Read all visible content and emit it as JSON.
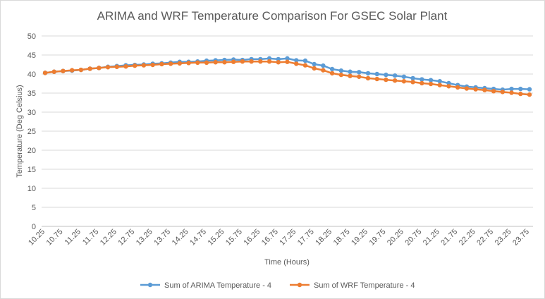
{
  "chart_data": {
    "type": "line",
    "title": "ARIMA and WRF Temperature Comparison For GSEC Solar Plant",
    "xlabel": "Time (Hours)",
    "ylabel": "Temperature  (Deg Celsius)",
    "ylim": [
      0,
      50
    ],
    "yticks": [
      0,
      5,
      10,
      15,
      20,
      25,
      30,
      35,
      40,
      45,
      50
    ],
    "grid": true,
    "legend_position": "bottom",
    "x": [
      10.25,
      10.5,
      10.75,
      11,
      11.25,
      11.5,
      11.75,
      12,
      12.25,
      12.5,
      12.75,
      13,
      13.25,
      13.5,
      13.75,
      14,
      14.25,
      14.5,
      14.75,
      15,
      15.25,
      15.5,
      15.75,
      16,
      16.25,
      16.5,
      16.75,
      17,
      17.25,
      17.5,
      17.75,
      18,
      18.25,
      18.5,
      18.75,
      19,
      19.25,
      19.5,
      19.75,
      20,
      20.25,
      20.5,
      20.75,
      21,
      21.25,
      21.5,
      21.75,
      22,
      22.25,
      22.5,
      22.75,
      23,
      23.25,
      23.5,
      23.75
    ],
    "xtick_labels": [
      "10.25",
      "10.75",
      "11.25",
      "11.75",
      "12.25",
      "12.75",
      "13.25",
      "13.75",
      "14.25",
      "14.75",
      "15.25",
      "15.75",
      "16.25",
      "16.75",
      "17.25",
      "17.75",
      "18.25",
      "18.75",
      "19.25",
      "19.75",
      "20.25",
      "20.75",
      "21.25",
      "21.75",
      "22.25",
      "22.75",
      "23.25",
      "23.75"
    ],
    "series": [
      {
        "name": "Sum of ARIMA Temperature - 4",
        "color": "#5b9bd5",
        "values": [
          40.3,
          40.6,
          40.8,
          40.9,
          41.1,
          41.4,
          41.6,
          41.9,
          42.1,
          42.3,
          42.4,
          42.5,
          42.7,
          42.8,
          43.0,
          43.2,
          43.2,
          43.3,
          43.5,
          43.6,
          43.7,
          43.8,
          43.7,
          43.9,
          43.9,
          44.1,
          43.9,
          44.1,
          43.6,
          43.5,
          42.6,
          42.2,
          41.3,
          40.9,
          40.6,
          40.5,
          40.2,
          40.0,
          39.8,
          39.6,
          39.3,
          38.9,
          38.6,
          38.4,
          38.1,
          37.6,
          37.1,
          36.7,
          36.5,
          36.3,
          36.1,
          35.9,
          36.1,
          36.1,
          36.0
        ]
      },
      {
        "name": "Sum of WRF Temperature - 4",
        "color": "#ed7d31",
        "values": [
          40.3,
          40.6,
          40.8,
          41.0,
          41.1,
          41.4,
          41.6,
          41.8,
          41.9,
          42.0,
          42.2,
          42.3,
          42.4,
          42.6,
          42.7,
          42.8,
          42.9,
          43.0,
          43.0,
          43.1,
          43.1,
          43.2,
          43.3,
          43.3,
          43.3,
          43.3,
          43.1,
          43.2,
          42.7,
          42.3,
          41.5,
          41.0,
          40.2,
          39.8,
          39.5,
          39.3,
          38.9,
          38.7,
          38.5,
          38.3,
          38.1,
          37.9,
          37.6,
          37.4,
          37.1,
          36.8,
          36.5,
          36.2,
          36.0,
          35.8,
          35.5,
          35.3,
          35.1,
          34.8,
          34.6
        ]
      }
    ]
  }
}
